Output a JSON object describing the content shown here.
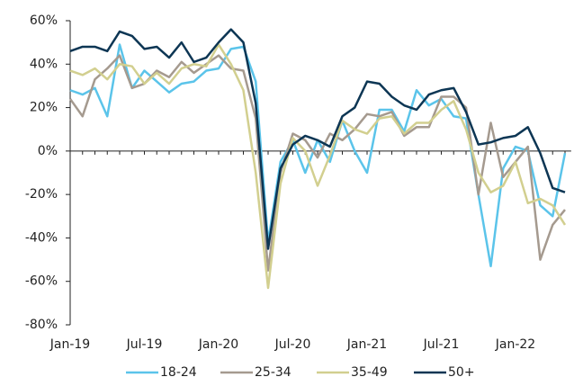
{
  "chart_data": {
    "type": "line",
    "categories": [
      "Jan-19",
      null,
      null,
      null,
      null,
      null,
      "Jul-19",
      null,
      null,
      null,
      null,
      null,
      "Jan-20",
      null,
      null,
      null,
      null,
      null,
      "Jul-20",
      null,
      null,
      null,
      null,
      null,
      "Jan-21",
      null,
      null,
      null,
      null,
      null,
      "Jul-21",
      null,
      null,
      null,
      null,
      null,
      "Jan-22",
      null,
      null,
      null,
      null
    ],
    "series": [
      {
        "name": "18-24",
        "color": "#5bc4ea",
        "values": [
          28,
          26,
          29,
          16,
          49,
          29,
          37,
          32,
          27,
          31,
          32,
          37,
          38,
          47,
          48,
          32,
          -42,
          -5,
          5,
          -10,
          5,
          -5,
          14,
          0,
          -10,
          19,
          19,
          9,
          28,
          21,
          24,
          16,
          15,
          -20,
          -53,
          -8,
          2,
          0,
          -25,
          -30,
          -1
        ]
      },
      {
        "name": "25-34",
        "color": "#a59a8f",
        "values": [
          24,
          16,
          33,
          38,
          44,
          29,
          31,
          37,
          34,
          41,
          36,
          40,
          44,
          38,
          37,
          15,
          -55,
          -10,
          8,
          5,
          -3,
          8,
          5,
          10,
          17,
          16,
          18,
          7,
          11,
          11,
          25,
          25,
          20,
          -20,
          13,
          -12,
          -5,
          2,
          -50,
          -34,
          -27
        ]
      },
      {
        "name": "35-49",
        "color": "#d2cf8f",
        "values": [
          37,
          35,
          38,
          33,
          40,
          39,
          31,
          36,
          31,
          38,
          40,
          39,
          49,
          40,
          28,
          -10,
          -63,
          -15,
          6,
          0,
          -16,
          -2,
          14,
          10,
          8,
          15,
          16,
          8,
          13,
          13,
          19,
          23,
          10,
          -10,
          -19,
          -16,
          -5,
          -24,
          -22,
          -25,
          -34
        ]
      },
      {
        "name": "50+",
        "color": "#0d3654",
        "values": [
          46,
          48,
          48,
          46,
          55,
          53,
          47,
          48,
          43,
          50,
          41,
          43,
          50,
          56,
          50,
          22,
          -45,
          -8,
          3,
          7,
          5,
          2,
          16,
          20,
          32,
          31,
          25,
          21,
          19,
          26,
          28,
          29,
          18,
          3,
          4,
          6,
          7,
          11,
          -1,
          -17,
          -19
        ]
      }
    ],
    "ylim": [
      -80,
      60
    ],
    "yticks": [
      {
        "value": -80,
        "label": "-80%"
      },
      {
        "value": -60,
        "label": "-60%"
      },
      {
        "value": -40,
        "label": "-40%"
      },
      {
        "value": -20,
        "label": "-20%"
      },
      {
        "value": 0,
        "label": "0%"
      },
      {
        "value": 20,
        "label": "20%"
      },
      {
        "value": 40,
        "label": "40%"
      },
      {
        "value": 60,
        "label": "60%"
      }
    ],
    "legend": "bottom"
  }
}
